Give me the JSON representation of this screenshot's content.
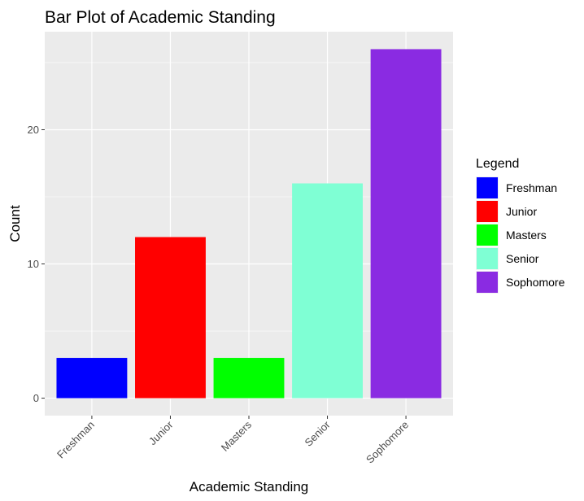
{
  "chart_data": {
    "type": "bar",
    "title": "Bar Plot of Academic Standing",
    "xlabel": "Academic Standing",
    "ylabel": "Count",
    "categories": [
      "Freshman",
      "Junior",
      "Masters",
      "Senior",
      "Sophomore"
    ],
    "values": [
      3,
      12,
      3,
      16,
      26
    ],
    "colors": [
      "#0000FF",
      "#FF0000",
      "#00FF00",
      "#7FFFD4",
      "#8A2BE2"
    ],
    "ylim": [
      -1.3,
      27.3
    ],
    "yticks": [
      0,
      10,
      20
    ],
    "grid": true,
    "legend": {
      "title": "Legend",
      "position": "right",
      "entries": [
        "Freshman",
        "Junior",
        "Masters",
        "Senior",
        "Sophomore"
      ]
    }
  }
}
